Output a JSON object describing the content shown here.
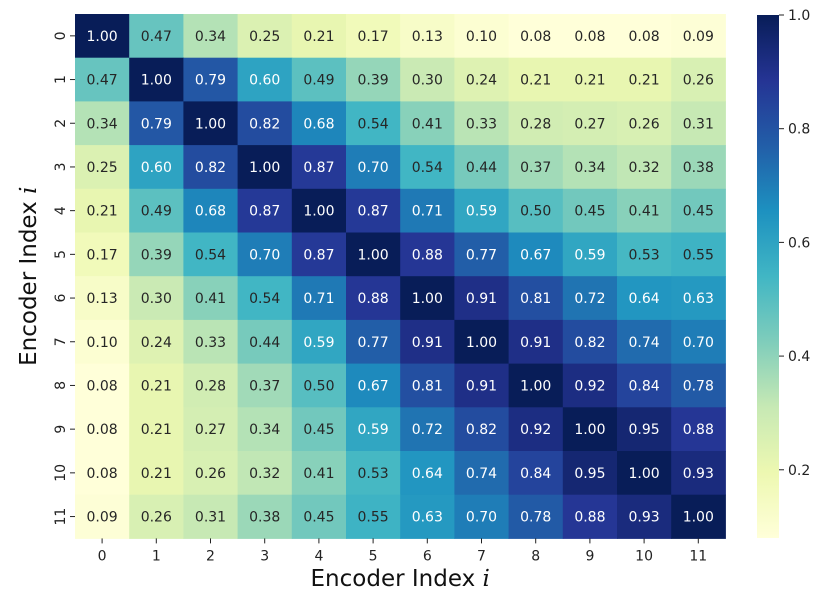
{
  "chart_data": {
    "type": "heatmap",
    "title": "",
    "xlabel": "Encoder Index i",
    "ylabel": "Encoder Index i",
    "x_categories": [
      "0",
      "1",
      "2",
      "3",
      "4",
      "5",
      "6",
      "7",
      "8",
      "9",
      "10",
      "11"
    ],
    "y_categories": [
      "0",
      "1",
      "2",
      "3",
      "4",
      "5",
      "6",
      "7",
      "8",
      "9",
      "10",
      "11"
    ],
    "values": [
      [
        1.0,
        0.47,
        0.34,
        0.25,
        0.21,
        0.17,
        0.13,
        0.1,
        0.08,
        0.08,
        0.08,
        0.09
      ],
      [
        0.47,
        1.0,
        0.79,
        0.6,
        0.49,
        0.39,
        0.3,
        0.24,
        0.21,
        0.21,
        0.21,
        0.26
      ],
      [
        0.34,
        0.79,
        1.0,
        0.82,
        0.68,
        0.54,
        0.41,
        0.33,
        0.28,
        0.27,
        0.26,
        0.31
      ],
      [
        0.25,
        0.6,
        0.82,
        1.0,
        0.87,
        0.7,
        0.54,
        0.44,
        0.37,
        0.34,
        0.32,
        0.38
      ],
      [
        0.21,
        0.49,
        0.68,
        0.87,
        1.0,
        0.87,
        0.71,
        0.59,
        0.5,
        0.45,
        0.41,
        0.45
      ],
      [
        0.17,
        0.39,
        0.54,
        0.7,
        0.87,
        1.0,
        0.88,
        0.77,
        0.67,
        0.59,
        0.53,
        0.55
      ],
      [
        0.13,
        0.3,
        0.41,
        0.54,
        0.71,
        0.88,
        1.0,
        0.91,
        0.81,
        0.72,
        0.64,
        0.63
      ],
      [
        0.1,
        0.24,
        0.33,
        0.44,
        0.59,
        0.77,
        0.91,
        1.0,
        0.91,
        0.82,
        0.74,
        0.7
      ],
      [
        0.08,
        0.21,
        0.28,
        0.37,
        0.5,
        0.67,
        0.81,
        0.91,
        1.0,
        0.92,
        0.84,
        0.78
      ],
      [
        0.08,
        0.21,
        0.27,
        0.34,
        0.45,
        0.59,
        0.72,
        0.82,
        0.92,
        1.0,
        0.95,
        0.88
      ],
      [
        0.08,
        0.21,
        0.26,
        0.32,
        0.41,
        0.53,
        0.64,
        0.74,
        0.84,
        0.95,
        1.0,
        0.93
      ],
      [
        0.09,
        0.26,
        0.31,
        0.38,
        0.45,
        0.55,
        0.63,
        0.7,
        0.78,
        0.88,
        0.93,
        1.0
      ]
    ],
    "value_format": "0.00",
    "colormap": "YlGnBu",
    "colorbar": {
      "range": [
        0.08,
        1.0
      ],
      "ticks": [
        0.2,
        0.4,
        0.6,
        0.8,
        1.0
      ],
      "tick_labels": [
        "0.2",
        "0.4",
        "0.6",
        "0.8",
        "1.0"
      ]
    },
    "grid": false,
    "legend": "colorbar right"
  }
}
